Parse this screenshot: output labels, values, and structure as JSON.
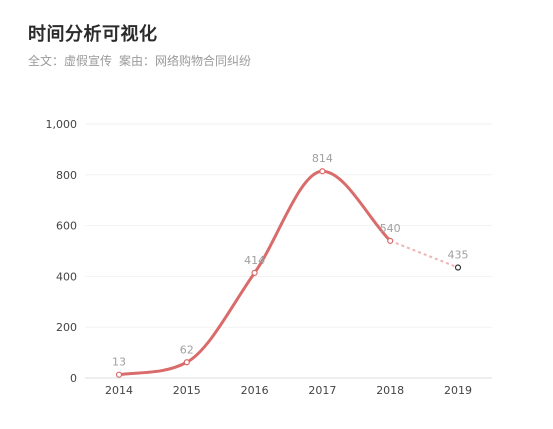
{
  "header": {
    "title": "时间分析可视化",
    "subtitle_prefix": "全文：",
    "subtitle_keyword": "虚假宣传",
    "subtitle_case_prefix": "案由：",
    "subtitle_case": "网络购物合同纠纷"
  },
  "colors": {
    "line": "#d96b6b",
    "line_dashed": "#f0b4b4",
    "label": "#a0a0a0",
    "axis_text": "#444444",
    "grid": "#f2f2f2"
  },
  "chart_data": {
    "type": "line",
    "title": "时间分析可视化",
    "x": [
      "2014",
      "2015",
      "2016",
      "2017",
      "2018",
      "2019"
    ],
    "values": [
      13,
      62,
      414,
      814,
      540,
      435
    ],
    "data_labels": [
      "13",
      "62",
      "414",
      "814",
      "540",
      "435"
    ],
    "solid_until_index": 4,
    "dashed_from_index": 4,
    "ylim": [
      0,
      1000
    ],
    "yticks": [
      0,
      200,
      400,
      600,
      800,
      1000
    ],
    "ytick_labels": [
      "0",
      "200",
      "400",
      "600",
      "800",
      "1,000"
    ],
    "grid": true,
    "smooth": true,
    "xlabel": "",
    "ylabel": ""
  }
}
